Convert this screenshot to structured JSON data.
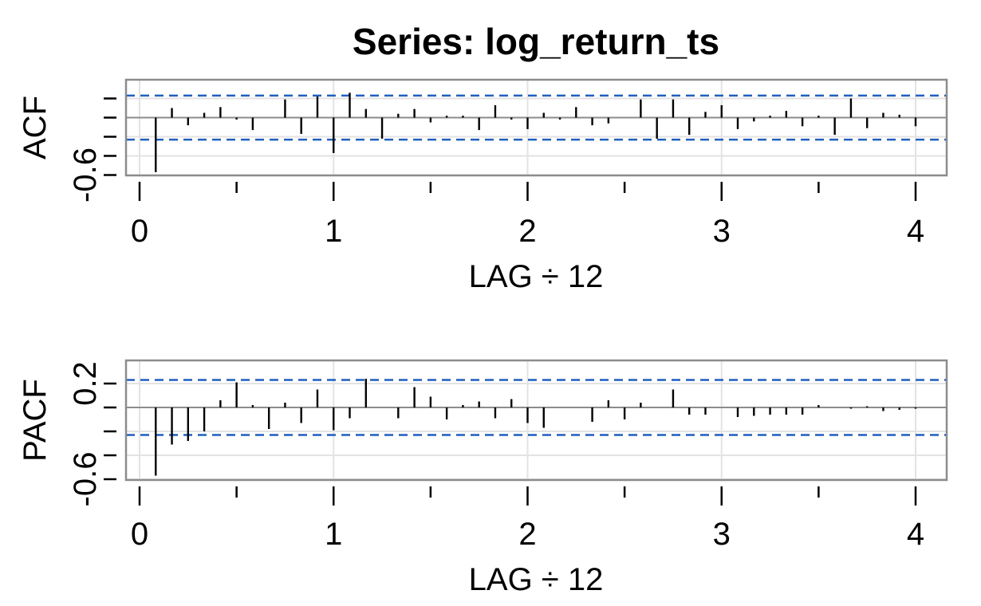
{
  "title": "Series:  log_return_ts",
  "colors": {
    "bound": "#1f5fbf",
    "bar": "#000000",
    "frame": "#8c8c8c",
    "grid": "#e3e3e3"
  },
  "chart_data": [
    {
      "type": "bar",
      "name": "acf-panel",
      "ylabel": "ACF",
      "xlabel": "LAG ÷ 12",
      "xlim": [
        -0.075,
        4.167
      ],
      "ylim": [
        -0.6,
        0.2
      ],
      "xticks": [
        0,
        1,
        2,
        3,
        4
      ],
      "xtick_labels": [
        "0",
        "1",
        "2",
        "3",
        "4"
      ],
      "yticks": [
        -0.6,
        -0.4,
        -0.2,
        0.0,
        0.2
      ],
      "ytick_labels": [
        "-0.6",
        "",
        "",
        "",
        ""
      ],
      "grid": true,
      "confidence_bound": 0.23,
      "x": [
        0.0833,
        0.1667,
        0.25,
        0.3333,
        0.4167,
        0.5,
        0.5833,
        0.6667,
        0.75,
        0.8333,
        0.9167,
        1.0,
        1.0833,
        1.1667,
        1.25,
        1.3333,
        1.4167,
        1.5,
        1.5833,
        1.6667,
        1.75,
        1.8333,
        1.9167,
        2.0,
        2.0833,
        2.1667,
        2.25,
        2.3333,
        2.4167,
        2.5,
        2.5833,
        2.6667,
        2.75,
        2.8333,
        2.9167,
        3.0,
        3.0833,
        3.1667,
        3.25,
        3.3333,
        3.4167,
        3.5,
        3.5833,
        3.6667,
        3.75,
        3.8333,
        3.9167,
        4.0
      ],
      "values": [
        -0.57,
        0.1,
        -0.08,
        0.05,
        0.11,
        -0.02,
        -0.13,
        0.0,
        0.19,
        -0.17,
        0.22,
        -0.37,
        0.26,
        0.09,
        -0.22,
        0.04,
        0.09,
        -0.05,
        0.02,
        0.02,
        -0.13,
        0.13,
        -0.02,
        -0.12,
        0.05,
        -0.02,
        0.11,
        -0.08,
        -0.06,
        0.0,
        0.19,
        -0.22,
        0.19,
        -0.18,
        0.06,
        0.13,
        -0.12,
        -0.04,
        0.02,
        0.07,
        -0.09,
        0.02,
        -0.18,
        0.2,
        -0.11,
        0.05,
        0.03,
        -0.09
      ]
    },
    {
      "type": "bar",
      "name": "pacf-panel",
      "ylabel": "PACF",
      "xlabel": "LAG ÷ 12",
      "xlim": [
        -0.075,
        4.167
      ],
      "ylim": [
        -0.75,
        0.48
      ],
      "xticks": [
        0,
        1,
        2,
        3,
        4
      ],
      "xtick_labels": [
        "0",
        "1",
        "2",
        "3",
        "4"
      ],
      "yticks": [
        -0.6,
        -0.2,
        0.2
      ],
      "ytick_labels": [
        "-0.6",
        "",
        "0.2"
      ],
      "minor_yticks": [
        -0.4,
        0.0
      ],
      "grid": true,
      "confidence_bound": 0.23,
      "x": [
        0.0833,
        0.1667,
        0.25,
        0.3333,
        0.4167,
        0.5,
        0.5833,
        0.6667,
        0.75,
        0.8333,
        0.9167,
        1.0,
        1.0833,
        1.1667,
        1.25,
        1.3333,
        1.4167,
        1.5,
        1.5833,
        1.6667,
        1.75,
        1.8333,
        1.9167,
        2.0,
        2.0833,
        2.1667,
        2.25,
        2.3333,
        2.4167,
        2.5,
        2.5833,
        2.6667,
        2.75,
        2.8333,
        2.9167,
        3.0,
        3.0833,
        3.1667,
        3.25,
        3.3333,
        3.4167,
        3.5,
        3.5833,
        3.6667,
        3.75,
        3.8333,
        3.9167,
        4.0
      ],
      "values": [
        -0.57,
        -0.31,
        -0.28,
        -0.2,
        0.06,
        0.21,
        0.02,
        -0.18,
        0.04,
        -0.13,
        0.15,
        -0.19,
        -0.09,
        0.24,
        0.0,
        -0.09,
        0.17,
        0.09,
        -0.1,
        0.02,
        0.05,
        -0.09,
        0.07,
        -0.13,
        -0.17,
        0.0,
        0.0,
        -0.12,
        0.06,
        -0.1,
        0.04,
        0.0,
        0.15,
        -0.06,
        -0.06,
        0.0,
        -0.08,
        -0.07,
        -0.06,
        -0.06,
        -0.06,
        0.02,
        0.0,
        -0.01,
        0.01,
        -0.03,
        -0.02,
        -0.01
      ]
    }
  ]
}
